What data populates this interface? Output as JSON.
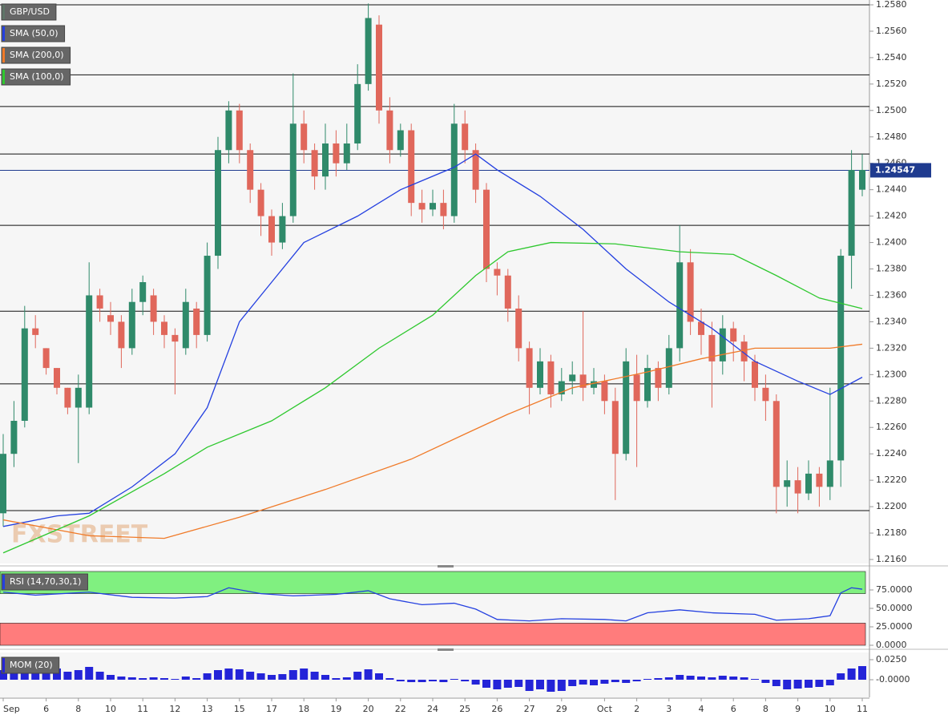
{
  "chart_data": [
    {
      "type": "candlestick",
      "watermark": "FXSTREET",
      "categories": [
        "Sep",
        null,
        null,
        null,
        "6",
        null,
        null,
        "8",
        null,
        null,
        "10",
        null,
        null,
        "11",
        null,
        null,
        "12",
        null,
        null,
        "13",
        null,
        null,
        "15",
        null,
        null,
        "17",
        null,
        null,
        "18",
        null,
        null,
        "19",
        null,
        null,
        "20",
        null,
        null,
        "22",
        null,
        null,
        "24",
        null,
        null,
        "25",
        null,
        null,
        "26",
        null,
        null,
        "27",
        null,
        null,
        "29",
        null,
        null,
        null,
        "Oct",
        null,
        null,
        "2",
        null,
        null,
        "3",
        null,
        null,
        "4",
        null,
        null,
        "6",
        null,
        null,
        "8",
        null,
        null,
        "9",
        null,
        null,
        "10",
        null,
        null,
        "11"
      ],
      "series": [
        {
          "name": "GBP/USD",
          "color": "#5f7568",
          "up_color": "#2f8a6a",
          "down_color": "#e0675b",
          "open": [
            1.2195,
            1.224,
            1.2265,
            1.2335,
            1.232,
            1.2305,
            1.229,
            1.2275,
            1.2275,
            1.236,
            1.2345,
            1.234,
            1.232,
            1.2355,
            1.236,
            1.234,
            1.233,
            1.232,
            1.235,
            1.233,
            1.239,
            1.247,
            1.25,
            1.247,
            1.244,
            1.242,
            1.24,
            1.242,
            1.249,
            1.247,
            1.245,
            1.2475,
            1.246,
            1.2475,
            1.252,
            1.2565,
            1.25,
            1.247,
            1.2485,
            1.243,
            1.2425,
            1.243,
            1.242,
            1.249,
            1.247,
            1.244,
            1.238,
            1.2375,
            1.235,
            1.232,
            1.229,
            1.231,
            1.2285,
            1.2295,
            1.23,
            1.229,
            1.2295,
            1.228,
            1.224,
            1.23,
            1.228,
            1.2305,
            1.229,
            1.232,
            1.2385,
            1.234,
            1.233,
            1.231,
            1.2335,
            1.2325,
            1.231,
            1.229,
            1.228,
            1.2215,
            1.222,
            1.221,
            1.2225,
            1.2215,
            1.2235,
            1.239,
            1.244
          ],
          "high": [
            1.2255,
            1.228,
            1.2352,
            1.2345,
            1.232,
            1.2305,
            1.229,
            1.23,
            1.2385,
            1.2365,
            1.2355,
            1.2345,
            1.2365,
            1.2375,
            1.2365,
            1.2345,
            1.2335,
            1.2365,
            1.2355,
            1.24,
            1.248,
            1.2507,
            1.2505,
            1.2475,
            1.2445,
            1.2425,
            1.243,
            1.2528,
            1.25,
            1.2475,
            1.249,
            1.2485,
            1.249,
            1.2535,
            1.2581,
            1.2572,
            1.251,
            1.249,
            1.249,
            1.244,
            1.244,
            1.244,
            1.2505,
            1.25,
            1.2475,
            1.2445,
            1.2385,
            1.238,
            1.236,
            1.2325,
            1.232,
            1.2315,
            1.2305,
            1.231,
            1.2348,
            1.2305,
            1.23,
            1.229,
            1.232,
            1.2315,
            1.2315,
            1.231,
            1.233,
            1.2413,
            1.2395,
            1.235,
            1.234,
            1.2345,
            1.234,
            1.233,
            1.2315,
            1.23,
            1.2285,
            1.2235,
            1.223,
            1.2235,
            1.223,
            1.229,
            1.2395,
            1.247,
            1.2467
          ],
          "low": [
            1.2185,
            1.223,
            1.226,
            1.232,
            1.23,
            1.2285,
            1.227,
            1.2233,
            1.227,
            1.234,
            1.233,
            1.2305,
            1.2315,
            1.2345,
            1.233,
            1.232,
            1.2285,
            1.2315,
            1.232,
            1.2325,
            1.238,
            1.246,
            1.246,
            1.243,
            1.2405,
            1.239,
            1.2395,
            1.2415,
            1.246,
            1.244,
            1.244,
            1.245,
            1.2455,
            1.247,
            1.2515,
            1.249,
            1.246,
            1.2465,
            1.242,
            1.2415,
            1.242,
            1.241,
            1.2415,
            1.246,
            1.243,
            1.237,
            1.236,
            1.234,
            1.231,
            1.227,
            1.2285,
            1.2275,
            1.228,
            1.2285,
            1.228,
            1.2285,
            1.227,
            1.2205,
            1.2235,
            1.223,
            1.2275,
            1.228,
            1.2285,
            1.231,
            1.233,
            1.2315,
            1.2275,
            1.23,
            1.231,
            1.2295,
            1.228,
            1.2265,
            1.2195,
            1.22,
            1.2195,
            1.2205,
            1.22,
            1.2205,
            1.2215,
            1.2365,
            1.2435
          ],
          "close": [
            1.224,
            1.2265,
            1.2335,
            1.233,
            1.2305,
            1.229,
            1.2275,
            1.229,
            1.236,
            1.235,
            1.234,
            1.232,
            1.2355,
            1.237,
            1.234,
            1.233,
            1.2325,
            1.2355,
            1.233,
            1.239,
            1.247,
            1.25,
            1.247,
            1.244,
            1.242,
            1.24,
            1.242,
            1.249,
            1.247,
            1.245,
            1.2475,
            1.246,
            1.2475,
            1.252,
            1.257,
            1.25,
            1.247,
            1.2485,
            1.243,
            1.2425,
            1.243,
            1.242,
            1.249,
            1.247,
            1.244,
            1.238,
            1.2375,
            1.235,
            1.232,
            1.229,
            1.231,
            1.2285,
            1.2295,
            1.23,
            1.229,
            1.2295,
            1.228,
            1.224,
            1.231,
            1.228,
            1.2305,
            1.229,
            1.232,
            1.2385,
            1.234,
            1.233,
            1.231,
            1.2335,
            1.2325,
            1.231,
            1.229,
            1.228,
            1.2215,
            1.222,
            1.221,
            1.2225,
            1.2215,
            1.2235,
            1.239,
            1.2455,
            1.2455
          ]
        },
        {
          "name": "SMA (50,0)",
          "color": "#2440e0",
          "x": [
            0,
            5,
            8,
            12,
            16,
            19,
            22,
            25,
            28,
            33,
            37,
            42,
            44,
            46,
            50,
            54,
            58,
            62,
            66,
            70,
            74,
            77,
            80
          ],
          "values": [
            1.2185,
            1.2193,
            1.2195,
            1.2215,
            1.224,
            1.2275,
            1.234,
            1.237,
            1.24,
            1.242,
            1.244,
            1.2457,
            1.2467,
            1.2455,
            1.2435,
            1.241,
            1.238,
            1.2355,
            1.2335,
            1.231,
            1.2295,
            1.2285,
            1.2298
          ]
        },
        {
          "name": "SMA (200,0)",
          "color": "#f07a28",
          "x": [
            0,
            8,
            15,
            22,
            30,
            38,
            43,
            47,
            53,
            60,
            65,
            70,
            77,
            80
          ],
          "values": [
            1.219,
            1.2178,
            1.2176,
            1.2192,
            1.2213,
            1.2236,
            1.2255,
            1.227,
            1.229,
            1.2302,
            1.2312,
            1.232,
            1.232,
            1.2323
          ]
        },
        {
          "name": "SMA (100,0)",
          "color": "#2ec82e",
          "x": [
            0,
            8,
            15,
            19,
            25,
            30,
            35,
            40,
            44,
            47,
            51,
            57,
            63,
            68,
            72,
            76,
            80
          ],
          "values": [
            1.2165,
            1.2193,
            1.2225,
            1.2245,
            1.2265,
            1.229,
            1.232,
            1.2345,
            1.2375,
            1.2393,
            1.24,
            1.2399,
            1.2393,
            1.2391,
            1.2375,
            1.2358,
            1.235
          ]
        }
      ],
      "levels": [
        1.258,
        1.2527,
        1.2503,
        1.2467,
        1.2413,
        1.2348,
        1.2293,
        1.2197
      ],
      "last_price": {
        "value": 1.24547,
        "color": "#1f3b8f"
      },
      "ylim": [
        1.216,
        1.258
      ],
      "yticks": [
        {
          "value": 1.258,
          "label": "1.2580"
        },
        {
          "value": 1.256,
          "label": "1.2560"
        },
        {
          "value": 1.254,
          "label": "1.2540"
        },
        {
          "value": 1.252,
          "label": "1.2520"
        },
        {
          "value": 1.25,
          "label": "1.2500"
        },
        {
          "value": 1.248,
          "label": "1.2480"
        },
        {
          "value": 1.246,
          "label": "1.2460"
        },
        {
          "value": 1.244,
          "label": "1.2440"
        },
        {
          "value": 1.242,
          "label": "1.2420"
        },
        {
          "value": 1.24,
          "label": "1.2400"
        },
        {
          "value": 1.238,
          "label": "1.2380"
        },
        {
          "value": 1.236,
          "label": "1.2360"
        },
        {
          "value": 1.234,
          "label": "1.2340"
        },
        {
          "value": 1.232,
          "label": "1.2320"
        },
        {
          "value": 1.23,
          "label": "1.2300"
        },
        {
          "value": 1.228,
          "label": "1.2280"
        },
        {
          "value": 1.226,
          "label": "1.2260"
        },
        {
          "value": 1.224,
          "label": "1.2240"
        },
        {
          "value": 1.222,
          "label": "1.2220"
        },
        {
          "value": 1.22,
          "label": "1.2200"
        },
        {
          "value": 1.218,
          "label": "1.2180"
        },
        {
          "value": 1.216,
          "label": "1.2160"
        }
      ]
    },
    {
      "type": "line",
      "series": [
        {
          "name": "RSI (14,70,30,1)",
          "color": "#2440e0",
          "x": [
            0,
            3,
            8,
            12,
            16,
            19,
            21,
            24,
            27,
            31,
            34,
            36,
            39,
            42,
            44,
            46,
            49,
            52,
            56,
            58,
            60,
            63,
            66,
            70,
            72,
            75,
            77,
            78,
            79,
            80
          ],
          "values": [
            72,
            68,
            72,
            65,
            64,
            66,
            78,
            70,
            67,
            69,
            74,
            63,
            55,
            57,
            49,
            35,
            33,
            36,
            35,
            33,
            44,
            48,
            44,
            42,
            34,
            36,
            40,
            71,
            78,
            76
          ]
        }
      ],
      "zones": [
        {
          "from": 70,
          "to": 100,
          "color": "#80f080"
        },
        {
          "from": 0,
          "to": 30,
          "color": "#ff7c7c"
        }
      ],
      "ylim": [
        0,
        100
      ],
      "yticks": [
        {
          "value": 75,
          "label": "75.0000"
        },
        {
          "value": 50,
          "label": "50.0000"
        },
        {
          "value": 25,
          "label": "25.0000"
        },
        {
          "value": 0,
          "label": "0.0000"
        }
      ]
    },
    {
      "type": "bar",
      "series": [
        {
          "name": "MOM (20)",
          "color": "#2424d8",
          "values": [
            0.012,
            0.015,
            0.02,
            0.022,
            0.018,
            0.014,
            0.01,
            0.012,
            0.016,
            0.01,
            0.006,
            0.004,
            0.003,
            0.002,
            0.003,
            0.002,
            0.001,
            0.004,
            0.002,
            0.008,
            0.012,
            0.014,
            0.013,
            0.01,
            0.008,
            0.006,
            0.007,
            0.012,
            0.014,
            0.01,
            0.006,
            0.002,
            0.003,
            0.01,
            0.013,
            0.008,
            0.002,
            -0.002,
            -0.003,
            -0.003,
            -0.002,
            -0.003,
            0.001,
            -0.002,
            -0.006,
            -0.01,
            -0.012,
            -0.01,
            -0.009,
            -0.014,
            -0.012,
            -0.015,
            -0.014,
            -0.008,
            -0.006,
            -0.007,
            -0.005,
            -0.003,
            -0.004,
            -0.002,
            0.001,
            0.002,
            0.003,
            0.006,
            0.005,
            0.004,
            0.003,
            0.005,
            0.004,
            0.003,
            0.001,
            -0.004,
            -0.008,
            -0.012,
            -0.011,
            -0.01,
            -0.009,
            -0.007,
            0.008,
            0.014,
            0.017
          ]
        }
      ],
      "ylim": [
        -0.022,
        0.031
      ],
      "yticks": [
        {
          "value": 0.025,
          "label": "0.0250"
        },
        {
          "value": 0,
          "label": "-0.0000"
        }
      ]
    }
  ]
}
